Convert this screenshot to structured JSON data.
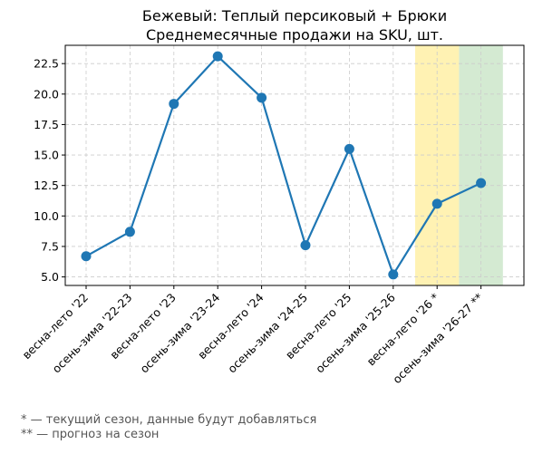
{
  "chart_data": {
    "type": "line",
    "title": "Бежевый: Теплый персиковый + Брюки",
    "subtitle": "Среднемесячные продажи на SKU, шт.",
    "categories": [
      "весна-лето '22",
      "осень-зима '22-23",
      "весна-лето '23",
      "осень-зима '23-24",
      "весна-лето '24",
      "осень-зима '24-25",
      "весна-лето '25",
      "осень-зима '25-26",
      "весна-лето '26 *",
      "осень-зима '26-27 **"
    ],
    "series": [
      {
        "values": [
          6.7,
          8.7,
          19.2,
          23.1,
          19.7,
          7.6,
          15.5,
          5.2,
          11.0,
          12.7
        ]
      }
    ],
    "ylim": [
      4.3,
      24.0
    ],
    "yticks": [
      5.0,
      7.5,
      10.0,
      12.5,
      15.0,
      17.5,
      20.0,
      22.5
    ],
    "grid": true,
    "line_color": "#1f77b4",
    "highlight_bands": [
      {
        "category": "весна-лето '26 *",
        "color": "#fff2b3"
      },
      {
        "category": "осень-зима '26-27 **",
        "color": "#d4ead2"
      }
    ]
  },
  "footnotes": {
    "current": "* — текущий сезон, данные будут добавляться",
    "forecast": "** — прогноз на сезон"
  }
}
